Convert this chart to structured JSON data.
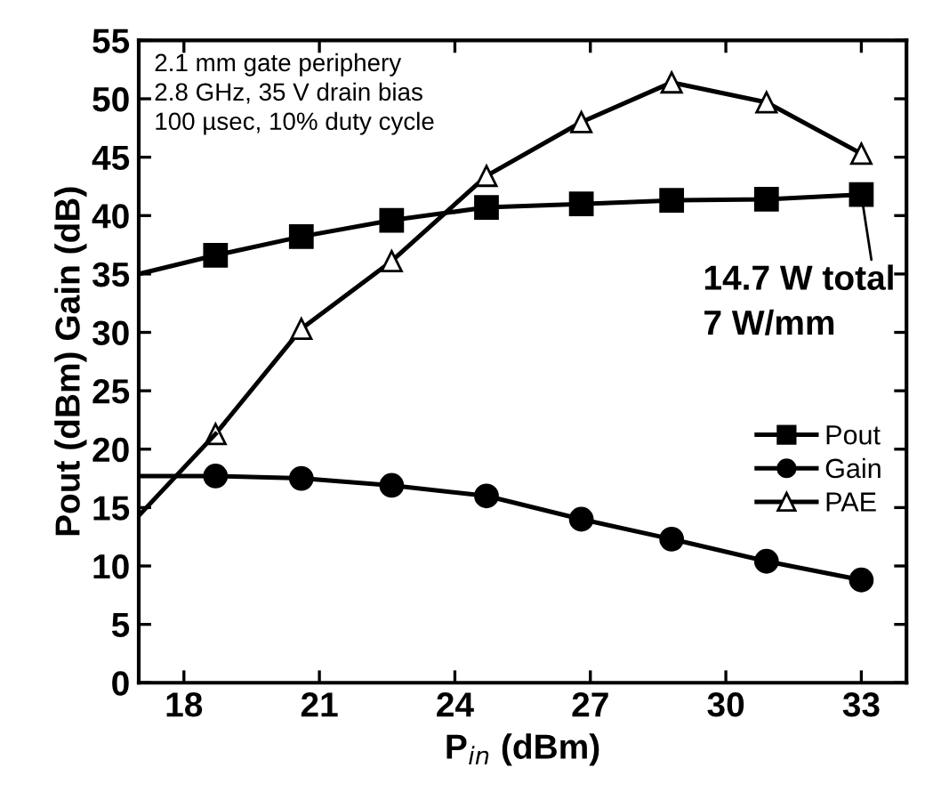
{
  "chart_data": {
    "type": "line",
    "xlabel": "P$_{in}$ (dBm)",
    "ylabel": "Pout (dBm) Gain (dB)",
    "xlim": [
      17,
      34
    ],
    "xticks": [
      18,
      21,
      24,
      27,
      30,
      33
    ],
    "ylim": [
      0,
      55
    ],
    "yticks": [
      0,
      5,
      10,
      15,
      20,
      25,
      30,
      35,
      40,
      45,
      50,
      55
    ],
    "grid": false,
    "legend": "right",
    "line_style": "solid",
    "series": [
      {
        "name": "Pout",
        "color": "#000000",
        "marker": "square",
        "x": [
          17,
          18.7,
          20.6,
          22.6,
          24.7,
          26.8,
          28.8,
          30.9,
          33.0
        ],
        "values": [
          35.0,
          36.6,
          38.2,
          39.6,
          40.7,
          41.0,
          41.3,
          41.4,
          41.8
        ]
      },
      {
        "name": "Gain",
        "color": "#000000",
        "marker": "circle",
        "x": [
          17,
          18.7,
          20.6,
          22.6,
          24.7,
          26.8,
          28.8,
          30.9,
          33.0
        ],
        "values": [
          17.7,
          17.7,
          17.5,
          16.9,
          16.0,
          14.0,
          12.3,
          10.4,
          8.8
        ]
      },
      {
        "name": "PAE",
        "color": "#000000",
        "marker": "triangle",
        "x": [
          17,
          18.7,
          20.6,
          22.6,
          24.7,
          26.8,
          28.8,
          30.9,
          33.0
        ],
        "values": [
          14.3,
          21.3,
          30.3,
          36.1,
          43.4,
          48.0,
          51.4,
          49.7,
          45.3
        ]
      }
    ],
    "annotations": [
      "2.1 mm gate periphery\n2.8 GHz, 35 V drain bias\n100 µsec, 10% duty cycle",
      {
        "text": "14.7 W total\n7 W/mm",
        "x": 33.0,
        "y": 41.8
      }
    ]
  }
}
